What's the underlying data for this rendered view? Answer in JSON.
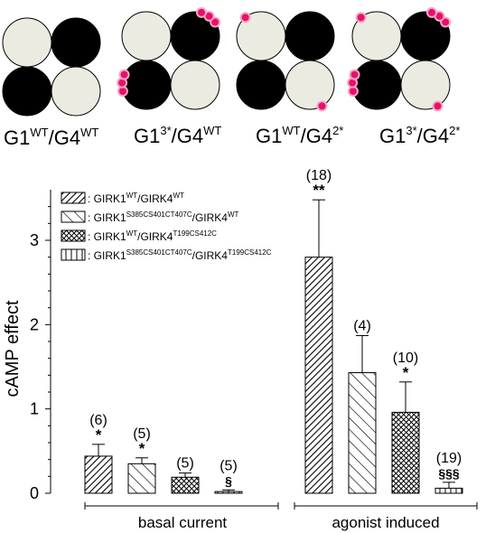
{
  "diagrams": [
    {
      "name": "G1",
      "name_sup": "WT",
      "sep": "/",
      "name2": "G4",
      "name2_sup": "WT",
      "marked": []
    },
    {
      "name": "G1",
      "name_sup": "3*",
      "sep": "/",
      "name2": "G4",
      "name2_sup": "WT",
      "marked": [
        "tr",
        "bl"
      ]
    },
    {
      "name": "G1",
      "name_sup": "WT",
      "sep": "/",
      "name2": "G4",
      "name2_sup": "2*",
      "marked": [
        "tl",
        "br"
      ]
    },
    {
      "name": "G1",
      "name_sup": "3*",
      "sep": "/",
      "name2": "G4",
      "name2_sup": "2*",
      "marked": [
        "tl",
        "tr",
        "bl",
        "br"
      ]
    }
  ],
  "colors": {
    "dark_subunit": "#000000",
    "light_subunit": "#ecebe2",
    "site_marker": "#e8106a",
    "site_halo": "#f6a6c6"
  },
  "chart_data": {
    "type": "bar",
    "ylabel": "cAMP effect",
    "ylim": [
      0,
      3.6
    ],
    "yticks": [
      "0",
      "1",
      "2",
      "3"
    ],
    "groups": [
      "basal current",
      "agonist induced"
    ],
    "series": [
      {
        "name": "GIRK1",
        "name_sup": "WT",
        "name2": "GIRK4",
        "name2_sup": "WT",
        "pattern": "diag-dense",
        "values": [
          0.44,
          2.8
        ],
        "errors": [
          0.14,
          0.68
        ],
        "n": [
          "(6)",
          "(18)"
        ],
        "sig": [
          "*",
          "**"
        ]
      },
      {
        "name": "GIRK1",
        "name_sup": "S385CS401CT407C",
        "name2": "GIRK4",
        "name2_sup": "WT",
        "pattern": "diag-sparse",
        "values": [
          0.35,
          1.43
        ],
        "errors": [
          0.07,
          0.44
        ],
        "n": [
          "(5)",
          "(4)"
        ],
        "sig": [
          "*",
          ""
        ]
      },
      {
        "name": "GIRK1",
        "name_sup": "WT",
        "name2": "GIRK4",
        "name2_sup": "T199CS412C",
        "pattern": "crosshatch",
        "values": [
          0.19,
          0.96
        ],
        "errors": [
          0.05,
          0.36
        ],
        "n": [
          "(5)",
          "(10)"
        ],
        "sig": [
          "",
          "*"
        ]
      },
      {
        "name": "GIRK1",
        "name_sup": "S385CS401CT407C",
        "name2": "GIRK4",
        "name2_sup": "T199CS412C",
        "pattern": "vertical",
        "values": [
          0.02,
          0.06
        ],
        "errors": [
          0.02,
          0.07
        ],
        "n": [
          "(5)",
          "(19)"
        ],
        "sig": [
          "§",
          "§§§"
        ]
      }
    ],
    "legend_prefix": ": ",
    "legend_position": "top-left",
    "grid": false
  }
}
